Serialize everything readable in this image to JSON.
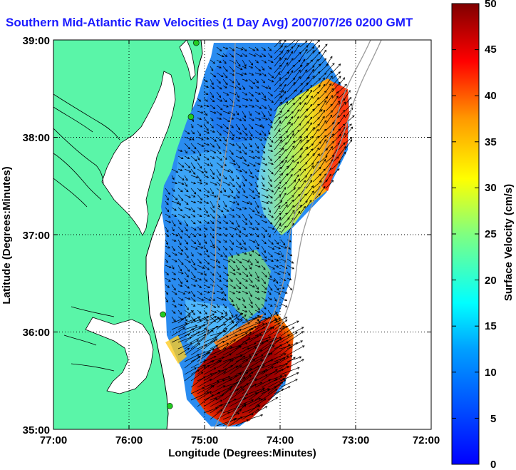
{
  "title": "Southern Mid-Atlantic Raw Velocities (1 Day Avg) 2007/07/26 0200 GMT",
  "x_axis": {
    "label": "Longitude (Degrees:Minutes)",
    "ticks": [
      "77:00",
      "76:00",
      "75:00",
      "74:00",
      "73:00",
      "72:00"
    ]
  },
  "y_axis": {
    "label": "Latitude (Degrees:Minutes)",
    "ticks": [
      "39:00",
      "38:00",
      "37:00",
      "36:00",
      "35:00"
    ]
  },
  "colorbar": {
    "label": "Surface Velocity (cm/s)",
    "ticks": [
      "50",
      "45",
      "40",
      "35",
      "30",
      "25",
      "20",
      "15",
      "10",
      "5",
      "0"
    ],
    "range": [
      0,
      50
    ],
    "colormap": "jet"
  },
  "map": {
    "extent_lon": [
      -77,
      -72
    ],
    "extent_lat": [
      35,
      39
    ],
    "land_color": "#5af5a8",
    "grid": "dotted",
    "stations": [
      {
        "lon": -75.11,
        "lat": 38.97
      },
      {
        "lon": -75.18,
        "lat": 38.21
      },
      {
        "lon": -75.55,
        "lat": 36.18
      },
      {
        "lon": -75.46,
        "lat": 35.24
      }
    ]
  }
}
